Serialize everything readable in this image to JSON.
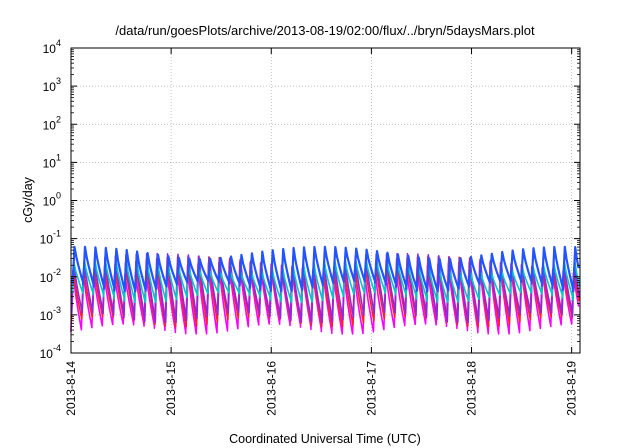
{
  "chart_data": {
    "type": "line",
    "title": "/data/run/goesPlots/archive/2013-08-19/02:00/flux/../bryn/5daysMars.plot",
    "xlabel": "Coordinated Universal Time (UTC)",
    "ylabel": "cGy/day",
    "yscale": "log",
    "ylim": [
      0.0001,
      10000
    ],
    "xlim": [
      "2013-08-14T00:00",
      "2013-08-19T02:00"
    ],
    "grid": true,
    "y_ticks": [
      {
        "value": 0.0001,
        "base": "10",
        "exp": "-4"
      },
      {
        "value": 0.001,
        "base": "10",
        "exp": "-3"
      },
      {
        "value": 0.01,
        "base": "10",
        "exp": "-2"
      },
      {
        "value": 0.1,
        "base": "10",
        "exp": "-1"
      },
      {
        "value": 1,
        "base": "10",
        "exp": "0"
      },
      {
        "value": 10,
        "base": "10",
        "exp": "1"
      },
      {
        "value": 100,
        "base": "10",
        "exp": "2"
      },
      {
        "value": 1000,
        "base": "10",
        "exp": "3"
      },
      {
        "value": 10000,
        "base": "10",
        "exp": "4"
      }
    ],
    "x_ticks": [
      {
        "value": "2013-08-14T00:00",
        "label": "2013-8-14"
      },
      {
        "value": "2013-08-15T00:00",
        "label": "2013-8-15"
      },
      {
        "value": "2013-08-16T00:00",
        "label": "2013-8-16"
      },
      {
        "value": "2013-08-17T00:00",
        "label": "2013-8-17"
      },
      {
        "value": "2013-08-18T00:00",
        "label": "2013-8-18"
      },
      {
        "value": "2013-08-19T00:00",
        "label": "2013-8-19"
      }
    ],
    "sawtooth_period_hours": 2.5,
    "series": [
      {
        "color": "#ff00ff",
        "peak": 0.018,
        "trough": 0.00045
      },
      {
        "color": "#ff2020",
        "peak": 0.025,
        "trough": 0.0007
      },
      {
        "color": "#8a2be2",
        "peak": 0.03,
        "trough": 0.0009
      },
      {
        "color": "#00c8c8",
        "peak": 0.02,
        "trough": 0.003
      },
      {
        "color": "#2255ff",
        "peak": 0.045,
        "trough": 0.006
      }
    ]
  }
}
